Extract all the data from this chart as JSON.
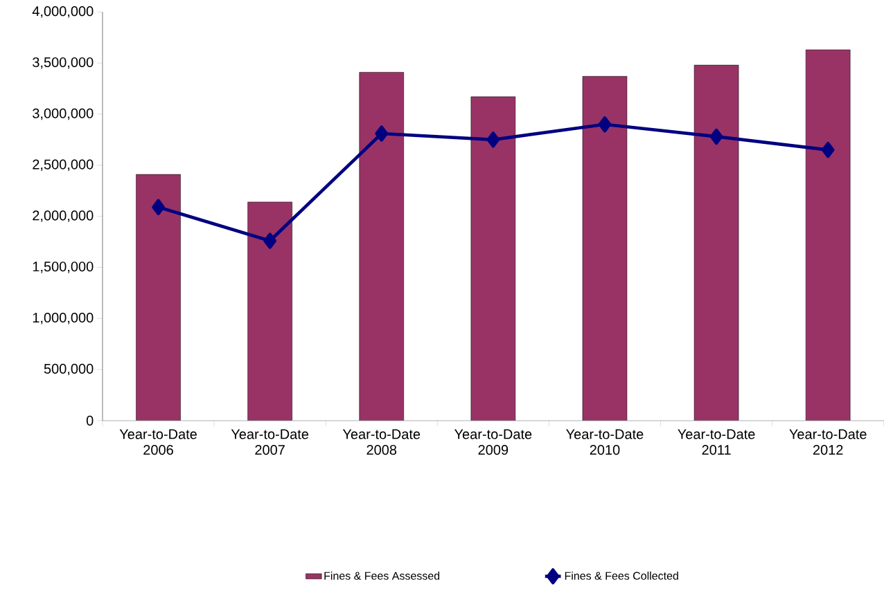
{
  "chart_data": {
    "type": "bar",
    "categories": [
      "Year-to-Date 2006",
      "Year-to-Date 2007",
      "Year-to-Date 2008",
      "Year-to-Date 2009",
      "Year-to-Date 2010",
      "Year-to-Date 2011",
      "Year-to-Date 2012"
    ],
    "series": [
      {
        "name": "Fines & Fees Assessed",
        "color": "#993366",
        "values": [
          2410000,
          2140000,
          3410000,
          3170000,
          3370000,
          3480000,
          3630000
        ]
      },
      {
        "name": "Fines & Fees Collected",
        "type": "line",
        "color": "#000080",
        "marker": "diamond",
        "values": [
          2090000,
          1760000,
          2810000,
          2750000,
          2900000,
          2780000,
          2650000
        ]
      }
    ],
    "ylim": [
      0,
      4000000
    ],
    "yticks": [
      {
        "value": 0,
        "label": "0"
      },
      {
        "value": 500000,
        "label": "500,000"
      },
      {
        "value": 1000000,
        "label": "1,000,000"
      },
      {
        "value": 1500000,
        "label": "1,500,000"
      },
      {
        "value": 2000000,
        "label": "2,000,000"
      },
      {
        "value": 2500000,
        "label": "2,500,000"
      },
      {
        "value": 3000000,
        "label": "3,000,000"
      },
      {
        "value": 3500000,
        "label": "3,500,000"
      },
      {
        "value": 4000000,
        "label": "4,000,000"
      }
    ],
    "legend": "bottom"
  }
}
